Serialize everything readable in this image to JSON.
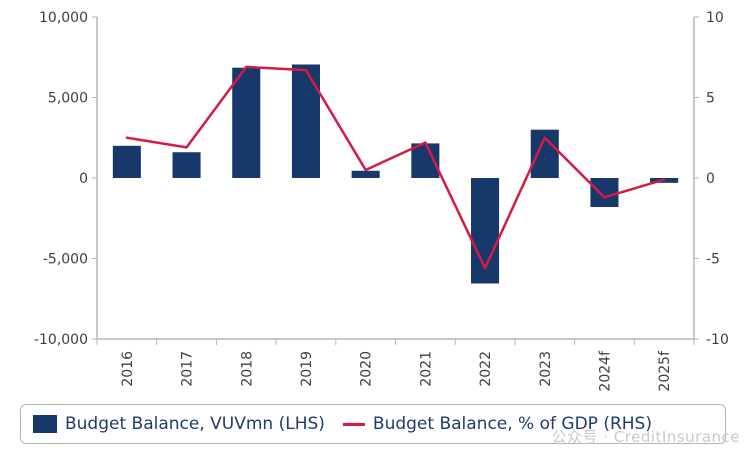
{
  "chart_data": {
    "type": "bar+line",
    "categories": [
      "2016",
      "2017",
      "2018",
      "2019",
      "2020",
      "2021",
      "2022",
      "2023",
      "2024f",
      "2025f"
    ],
    "left_axis": {
      "ylim": [
        -10000,
        10000
      ],
      "ticks": [
        -10000,
        -5000,
        0,
        5000,
        10000
      ],
      "tick_labels": [
        "-10,000",
        "-5,000",
        "0",
        "5,000",
        "10,000"
      ]
    },
    "right_axis": {
      "ylim": [
        -10,
        10
      ],
      "ticks": [
        -10,
        -5,
        0,
        5,
        10
      ],
      "tick_labels": [
        "-10",
        "-5",
        "0",
        "5",
        "10"
      ]
    },
    "series": [
      {
        "name": "Budget Balance, VUVmn (LHS)",
        "type": "bar",
        "axis": "left",
        "color": "#17386b",
        "values": [
          2000,
          1600,
          6850,
          7050,
          450,
          2150,
          -6550,
          3000,
          -1800,
          -300
        ]
      },
      {
        "name": "Budget Balance, % of GDP (RHS)",
        "type": "line",
        "axis": "right",
        "color": "#d61a46",
        "values": [
          2.5,
          1.9,
          6.9,
          6.7,
          0.5,
          2.2,
          -5.6,
          2.5,
          -1.2,
          -0.1
        ]
      }
    ],
    "grid": false,
    "legend_position": "bottom"
  },
  "legend": {
    "bar_label": "Budget Balance, VUVmn (LHS)",
    "line_label": "Budget Balance, % of GDP (RHS)"
  },
  "watermark": "公众号 · CreditInsurance"
}
